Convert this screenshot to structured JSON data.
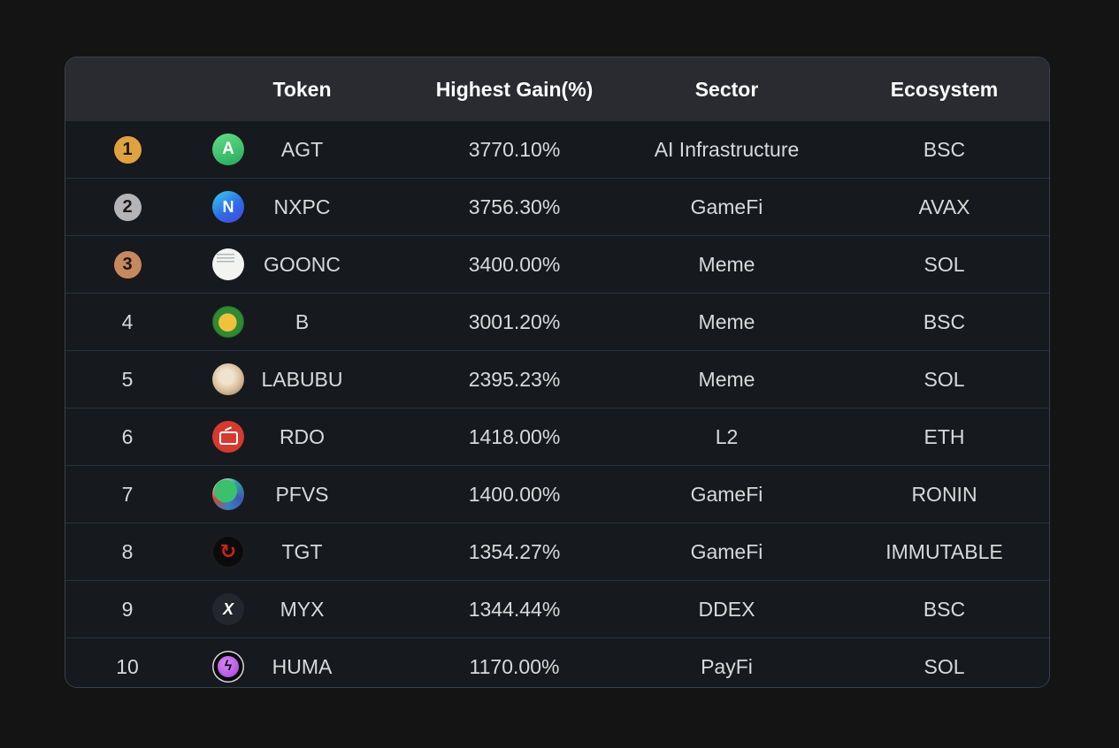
{
  "page": {
    "background_color": "#141414"
  },
  "table": {
    "headers": [
      "",
      "Token",
      "Highest Gain(%)",
      "Sector",
      "Ecosystem"
    ],
    "rank_colors": {
      "gold": "#dfa23e",
      "silver": "#b4b4b6",
      "bronze": "#c8885d"
    },
    "rows": [
      {
        "rank": "1",
        "badge": "gold",
        "token": "AGT",
        "icon": "agt-token-icon",
        "gain": "3770.10%",
        "sector": "AI Infrastructure",
        "ecosystem": "BSC"
      },
      {
        "rank": "2",
        "badge": "silver",
        "token": "NXPC",
        "icon": "nxpc-token-icon",
        "gain": "3756.30%",
        "sector": "GameFi",
        "ecosystem": "AVAX"
      },
      {
        "rank": "3",
        "badge": "bronze",
        "token": "GOONC",
        "icon": "goonc-token-icon",
        "gain": "3400.00%",
        "sector": "Meme",
        "ecosystem": "SOL"
      },
      {
        "rank": "4",
        "badge": "",
        "token": "B",
        "icon": "b-token-icon",
        "gain": "3001.20%",
        "sector": "Meme",
        "ecosystem": "BSC"
      },
      {
        "rank": "5",
        "badge": "",
        "token": "LABUBU",
        "icon": "labubu-token-icon",
        "gain": "2395.23%",
        "sector": "Meme",
        "ecosystem": "SOL"
      },
      {
        "rank": "6",
        "badge": "",
        "token": "RDO",
        "icon": "rdo-token-icon",
        "gain": "1418.00%",
        "sector": "L2",
        "ecosystem": "ETH"
      },
      {
        "rank": "7",
        "badge": "",
        "token": "PFVS",
        "icon": "pfvs-token-icon",
        "gain": "1400.00%",
        "sector": "GameFi",
        "ecosystem": "RONIN"
      },
      {
        "rank": "8",
        "badge": "",
        "token": "TGT",
        "icon": "tgt-token-icon",
        "gain": "1354.27%",
        "sector": "GameFi",
        "ecosystem": "IMMUTABLE"
      },
      {
        "rank": "9",
        "badge": "",
        "token": "MYX",
        "icon": "myx-token-icon",
        "gain": "1344.44%",
        "sector": "DDEX",
        "ecosystem": "BSC"
      },
      {
        "rank": "10",
        "badge": "",
        "token": "HUMA",
        "icon": "huma-token-icon",
        "gain": "1170.00%",
        "sector": "PayFi",
        "ecosystem": "SOL"
      }
    ],
    "icon_glyphs": {
      "agt-token-icon": "A",
      "nxpc-token-icon": "N",
      "tgt-token-icon": "↻",
      "myx-token-icon": "X",
      "huma-token-icon": "ϟ"
    }
  }
}
